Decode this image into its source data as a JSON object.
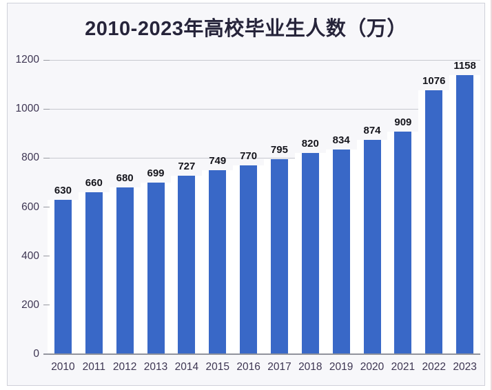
{
  "chart_data": {
    "type": "bar",
    "title": "2010-2023年高校毕业生人数（万）",
    "categories": [
      "2010",
      "2011",
      "2012",
      "2013",
      "2014",
      "2015",
      "2016",
      "2017",
      "2018",
      "2019",
      "2020",
      "2021",
      "2022",
      "2023"
    ],
    "values": [
      630,
      660,
      680,
      699,
      727,
      749,
      770,
      795,
      820,
      834,
      874,
      909,
      1076,
      1158
    ],
    "xlabel": "",
    "ylabel": "",
    "ylim": [
      0,
      1200
    ],
    "yticks": [
      0,
      200,
      400,
      600,
      800,
      1000,
      1200
    ],
    "grid": true,
    "legend": false,
    "data_labels": true,
    "legend_position": "none"
  },
  "colors": {
    "bar": "#3968c7",
    "bar_gap": "#ffffff",
    "grid": "#c7c8cf",
    "axis": "#90929b",
    "tick": "#9799a1",
    "axis_text": "#3d3552",
    "value_text": "#15151c",
    "title_text": "#26243a",
    "card_bg": "#f7f7fa",
    "card_border": "#cfd0d9",
    "page_edge": "#eed6da"
  }
}
